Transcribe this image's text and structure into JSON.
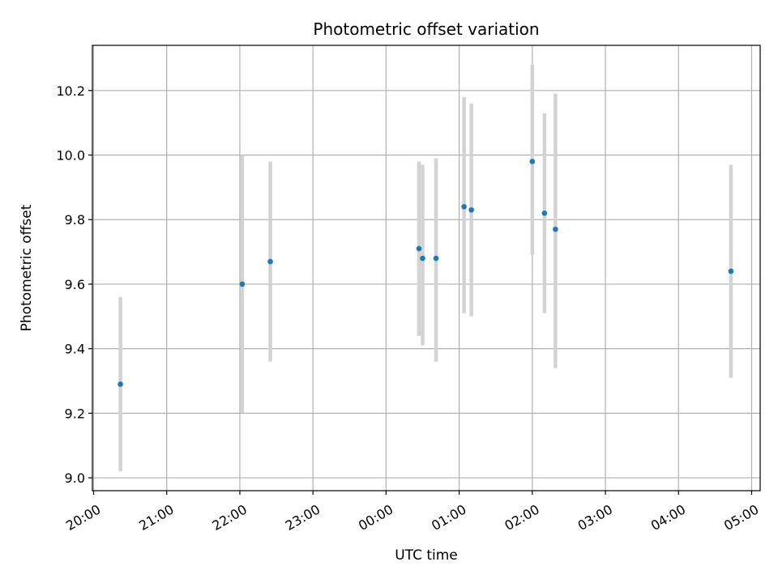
{
  "chart_data": {
    "type": "scatter",
    "title": "Photometric offset variation",
    "xlabel": "UTC time",
    "ylabel": "Photometric offset",
    "grid": true,
    "legend": "none",
    "x_ticks": [
      "20:00",
      "21:00",
      "22:00",
      "23:00",
      "00:00",
      "01:00",
      "02:00",
      "03:00",
      "04:00",
      "05:00"
    ],
    "y_ticks": [
      "9.0",
      "9.2",
      "9.4",
      "9.6",
      "9.8",
      "10.0",
      "10.2"
    ],
    "xlim": [
      "19:59",
      "05:07"
    ],
    "ylim": [
      8.96,
      10.34
    ],
    "colors": {
      "point": "#1f77b4",
      "errorbar": "#d3d3d3",
      "grid": "#b0b0b0"
    },
    "series": [
      {
        "points": [
          {
            "time": "20:22",
            "y": 9.29,
            "err_low": 9.02,
            "err_high": 9.56
          },
          {
            "time": "22:02",
            "y": 9.6,
            "err_low": 9.2,
            "err_high": 10.0
          },
          {
            "time": "22:25",
            "y": 9.67,
            "err_low": 9.36,
            "err_high": 9.98
          },
          {
            "time": "00:27",
            "y": 9.71,
            "err_low": 9.44,
            "err_high": 9.98
          },
          {
            "time": "00:30",
            "y": 9.68,
            "err_low": 9.41,
            "err_high": 9.97
          },
          {
            "time": "00:41",
            "y": 9.68,
            "err_low": 9.36,
            "err_high": 9.99
          },
          {
            "time": "01:04",
            "y": 9.84,
            "err_low": 9.51,
            "err_high": 10.18
          },
          {
            "time": "01:10",
            "y": 9.83,
            "err_low": 9.5,
            "err_high": 10.16
          },
          {
            "time": "02:00",
            "y": 9.98,
            "err_low": 9.69,
            "err_high": 10.28
          },
          {
            "time": "02:10",
            "y": 9.82,
            "err_low": 9.51,
            "err_high": 10.13
          },
          {
            "time": "02:19",
            "y": 9.77,
            "err_low": 9.34,
            "err_high": 10.19
          },
          {
            "time": "04:43",
            "y": 9.64,
            "err_low": 9.31,
            "err_high": 9.97
          }
        ]
      }
    ]
  }
}
